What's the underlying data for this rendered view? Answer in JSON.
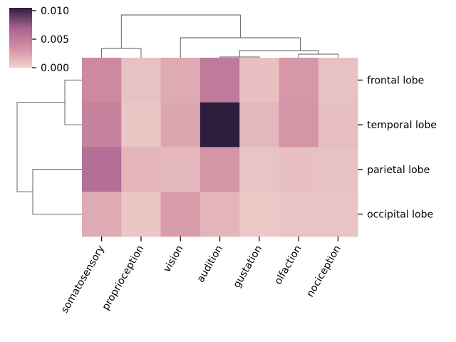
{
  "chart_data": {
    "type": "heatmap",
    "title": "",
    "xlabel": "",
    "ylabel": "",
    "columns": [
      "somatosensory",
      "proprioception",
      "vision",
      "audition",
      "gustation",
      "olfaction",
      "nociception"
    ],
    "rows": [
      "frontal lobe",
      "temporal lobe",
      "parietal lobe",
      "occipital lobe"
    ],
    "values": [
      [
        0.004,
        0.0008,
        0.002,
        0.005,
        0.0009,
        0.003,
        0.0008
      ],
      [
        0.0045,
        0.0006,
        0.0023,
        0.0105,
        0.0014,
        0.0032,
        0.001
      ],
      [
        0.006,
        0.0015,
        0.0013,
        0.0032,
        0.0007,
        0.0009,
        0.0008
      ],
      [
        0.002,
        0.0006,
        0.0028,
        0.0015,
        0.0005,
        0.0007,
        0.0007
      ]
    ],
    "colorbar": {
      "range": [
        0.0,
        0.0105
      ],
      "ticks": [
        0.0,
        0.005,
        0.01
      ],
      "tick_labels": [
        "0.000",
        "0.005",
        "0.010"
      ],
      "placement": "top-left",
      "colors": [
        "#efd1cc",
        "#d28fa3",
        "#a6628f",
        "#2d1e3e"
      ]
    },
    "row_dendrogram": "left",
    "column_dendrogram": "top",
    "grid": false
  }
}
